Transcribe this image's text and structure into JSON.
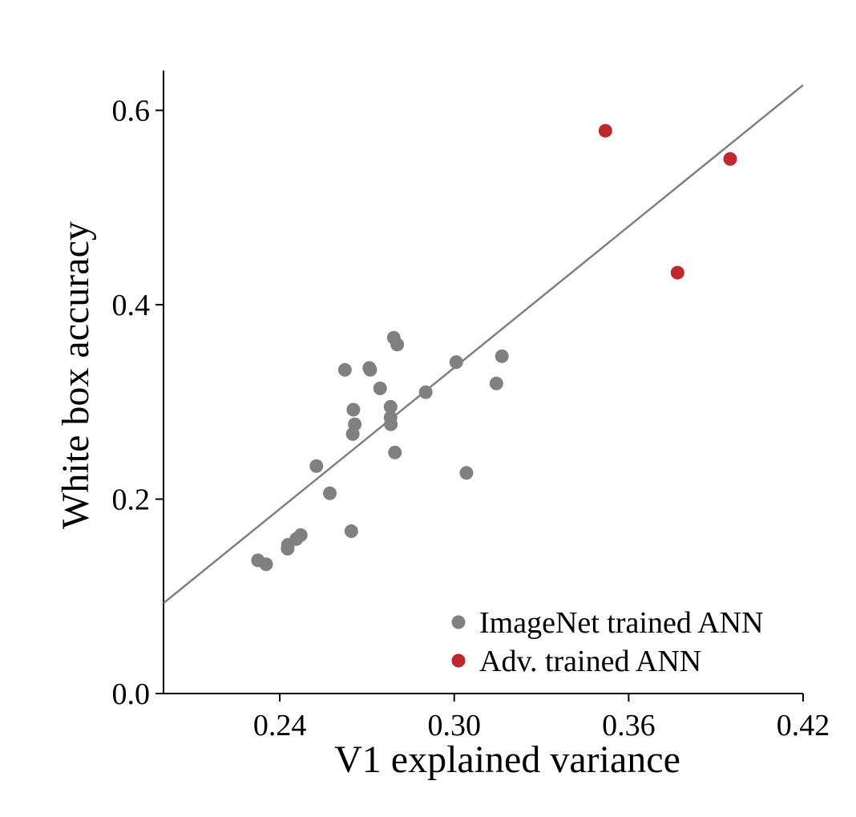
{
  "chart_data": {
    "type": "scatter",
    "title": "",
    "xlabel": "V1 explained variance",
    "ylabel": "White box accuracy",
    "xlim": [
      0.2,
      0.42
    ],
    "ylim": [
      0.0,
      0.65
    ],
    "x_ticks": [
      0.24,
      0.3,
      0.36,
      0.42
    ],
    "x_tick_labels": [
      "0.24",
      "0.30",
      "0.36",
      "0.42"
    ],
    "y_ticks": [
      0.0,
      0.2,
      0.4,
      0.6
    ],
    "y_tick_labels": [
      "0.0",
      "0.2",
      "0.4",
      "0.6"
    ],
    "grid": false,
    "legend_position": "bottom-right",
    "fit_line": {
      "x": [
        0.2,
        0.42
      ],
      "y": [
        0.093,
        0.626
      ],
      "color": "#808080"
    },
    "series": [
      {
        "name": "ImageNet trained ANN",
        "color": "#808080",
        "points": [
          {
            "x": 0.2325,
            "y": 0.137
          },
          {
            "x": 0.2353,
            "y": 0.133
          },
          {
            "x": 0.2427,
            "y": 0.149
          },
          {
            "x": 0.2428,
            "y": 0.153
          },
          {
            "x": 0.2457,
            "y": 0.159
          },
          {
            "x": 0.2472,
            "y": 0.163
          },
          {
            "x": 0.2526,
            "y": 0.234
          },
          {
            "x": 0.2572,
            "y": 0.206
          },
          {
            "x": 0.2646,
            "y": 0.167
          },
          {
            "x": 0.2651,
            "y": 0.267
          },
          {
            "x": 0.2653,
            "y": 0.292
          },
          {
            "x": 0.2658,
            "y": 0.277
          },
          {
            "x": 0.2624,
            "y": 0.333
          },
          {
            "x": 0.2708,
            "y": 0.335
          },
          {
            "x": 0.2711,
            "y": 0.333
          },
          {
            "x": 0.2745,
            "y": 0.314
          },
          {
            "x": 0.2781,
            "y": 0.295
          },
          {
            "x": 0.2781,
            "y": 0.284
          },
          {
            "x": 0.2782,
            "y": 0.277
          },
          {
            "x": 0.2792,
            "y": 0.366
          },
          {
            "x": 0.2804,
            "y": 0.359
          },
          {
            "x": 0.2796,
            "y": 0.248
          },
          {
            "x": 0.2902,
            "y": 0.31
          },
          {
            "x": 0.3007,
            "y": 0.341
          },
          {
            "x": 0.3042,
            "y": 0.227
          },
          {
            "x": 0.3145,
            "y": 0.319
          },
          {
            "x": 0.3164,
            "y": 0.347
          }
        ]
      },
      {
        "name": "Adv. trained ANN",
        "color": "#c1272d",
        "points": [
          {
            "x": 0.352,
            "y": 0.579
          },
          {
            "x": 0.3768,
            "y": 0.433
          },
          {
            "x": 0.3949,
            "y": 0.55
          }
        ]
      }
    ]
  }
}
